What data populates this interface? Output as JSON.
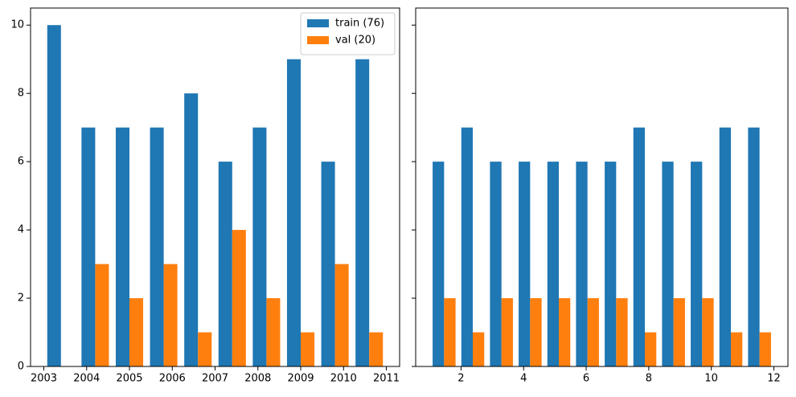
{
  "chart_data": [
    {
      "type": "histogram",
      "bins": [
        2003,
        2003.8,
        2004.6,
        2005.4,
        2006.2,
        2007,
        2007.8,
        2008.6,
        2009.4,
        2010.2,
        2011
      ],
      "series": [
        {
          "name": "train (76)",
          "color": "#1f77b4",
          "values": [
            10,
            7,
            7,
            7,
            8,
            6,
            7,
            9,
            6,
            9
          ]
        },
        {
          "name": "val (20)",
          "color": "#ff7f0e",
          "values": [
            0,
            3,
            2,
            3,
            1,
            4,
            2,
            1,
            3,
            1
          ]
        }
      ],
      "xlim": [
        2002.69,
        2011.31
      ],
      "xticks": [
        2003,
        2004,
        2005,
        2006,
        2007,
        2008,
        2009,
        2010,
        2011
      ],
      "ylim": [
        0,
        10.5
      ],
      "yticks": [
        0,
        2,
        4,
        6,
        8,
        10
      ],
      "legend": "upper right"
    },
    {
      "type": "histogram",
      "bins": [
        1,
        1.9166666666666667,
        2.8333333333333335,
        3.75,
        4.666666666666667,
        5.583333333333333,
        6.5,
        7.416666666666667,
        8.333333333333334,
        9.25,
        10.166666666666666,
        11.083333333333334,
        12
      ],
      "series": [
        {
          "color": "#1f77b4",
          "values": [
            6,
            7,
            6,
            6,
            6,
            6,
            6,
            7,
            6,
            6,
            7,
            7
          ]
        },
        {
          "color": "#ff7f0e",
          "values": [
            2,
            1,
            2,
            2,
            2,
            2,
            2,
            1,
            2,
            2,
            1,
            1
          ]
        }
      ],
      "xlim": [
        0.55,
        12.45
      ],
      "xticks": [
        2,
        4,
        6,
        8,
        10,
        12
      ],
      "sharey": true
    }
  ]
}
